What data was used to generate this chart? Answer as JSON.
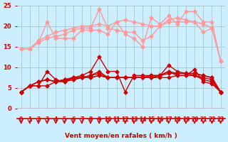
{
  "bg_color": "#cceeff",
  "grid_color": "#aacccc",
  "xlabel": "Vent moyen/en rafales ( km/h )",
  "xlabel_color": "#cc0000",
  "tick_color": "#cc0000",
  "arrow_color": "#cc0000",
  "xmin": 0,
  "xmax": 23,
  "ymin": 0,
  "ymax": 25,
  "yticks": [
    0,
    5,
    10,
    15,
    20,
    25
  ],
  "series_light": [
    [
      14.5,
      14.5,
      16.0,
      21.0,
      17.0,
      17.0,
      17.0,
      19.0,
      19.0,
      19.0,
      18.0,
      21.0,
      18.0,
      17.0,
      15.0,
      22.0,
      20.5,
      22.5,
      20.5,
      23.5,
      23.5,
      21.0,
      21.0,
      11.5
    ],
    [
      14.5,
      14.5,
      16.0,
      17.0,
      17.5,
      18.0,
      19.0,
      19.5,
      19.5,
      24.0,
      19.5,
      19.0,
      18.5,
      18.5,
      16.5,
      17.5,
      20.0,
      21.0,
      21.0,
      21.0,
      21.0,
      18.5,
      19.5,
      11.5
    ],
    [
      14.5,
      14.5,
      16.5,
      17.5,
      18.5,
      19.0,
      19.5,
      20.0,
      20.0,
      20.5,
      20.0,
      21.0,
      21.5,
      21.0,
      20.5,
      20.0,
      20.0,
      21.5,
      22.0,
      21.5,
      21.0,
      20.5,
      19.5,
      11.5
    ]
  ],
  "series_dark": [
    [
      4.0,
      5.5,
      5.5,
      9.0,
      7.0,
      6.5,
      7.5,
      8.0,
      9.0,
      12.5,
      9.0,
      9.0,
      4.0,
      8.0,
      8.0,
      8.0,
      8.0,
      9.0,
      8.0,
      8.0,
      9.5,
      6.5,
      6.0,
      4.0
    ],
    [
      4.0,
      5.5,
      5.5,
      5.5,
      6.5,
      7.0,
      7.0,
      7.5,
      8.0,
      9.0,
      7.5,
      7.5,
      7.5,
      7.5,
      7.5,
      7.5,
      7.5,
      7.5,
      8.0,
      8.0,
      8.0,
      7.5,
      7.0,
      4.0
    ],
    [
      4.0,
      5.5,
      6.5,
      7.0,
      6.5,
      6.5,
      7.0,
      7.5,
      8.0,
      8.5,
      7.5,
      7.5,
      7.5,
      7.5,
      7.5,
      8.0,
      8.0,
      8.5,
      8.5,
      8.5,
      8.5,
      8.0,
      7.5,
      4.0
    ],
    [
      4.0,
      5.5,
      6.5,
      7.0,
      6.5,
      7.0,
      7.5,
      7.5,
      7.5,
      8.0,
      7.5,
      7.5,
      7.5,
      7.5,
      7.5,
      7.5,
      8.0,
      10.5,
      9.0,
      8.5,
      8.5,
      8.0,
      7.5,
      4.0
    ],
    [
      4.0,
      5.5,
      6.5,
      7.0,
      6.5,
      7.0,
      7.5,
      7.5,
      7.5,
      8.0,
      7.5,
      7.5,
      7.5,
      7.5,
      7.5,
      7.5,
      8.0,
      9.0,
      8.5,
      8.5,
      8.0,
      7.0,
      6.5,
      4.0
    ]
  ],
  "light_color": "#ff9999",
  "dark_color": "#cc0000",
  "marker_size": 2.5,
  "line_width": 1.0
}
